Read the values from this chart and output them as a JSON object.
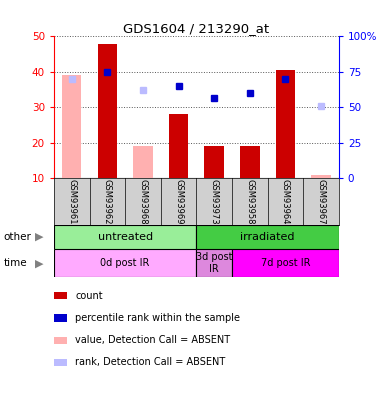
{
  "title": "GDS1604 / 213290_at",
  "samples": [
    "GSM93961",
    "GSM93962",
    "GSM93968",
    "GSM93969",
    "GSM93973",
    "GSM93958",
    "GSM93964",
    "GSM93967"
  ],
  "count_values": [
    null,
    48,
    null,
    28,
    19,
    19,
    40.5,
    null
  ],
  "count_absent": [
    39,
    null,
    19,
    null,
    null,
    null,
    null,
    11
  ],
  "rank_values": [
    null,
    40,
    null,
    36,
    32.5,
    34,
    38,
    null
  ],
  "rank_absent": [
    38,
    null,
    35,
    null,
    null,
    null,
    null,
    30.5
  ],
  "ylim_left": [
    10,
    50
  ],
  "ylim_right": [
    0,
    100
  ],
  "yticks_left": [
    10,
    20,
    30,
    40,
    50
  ],
  "yticks_right": [
    0,
    25,
    50,
    75,
    100
  ],
  "yticklabels_right": [
    "0",
    "25",
    "50",
    "75",
    "100%"
  ],
  "bar_color": "#cc0000",
  "bar_absent_color": "#ffb0b0",
  "rank_color": "#0000cc",
  "rank_absent_color": "#bbbbff",
  "group_other": [
    {
      "label": "untreated",
      "start": 0,
      "end": 4,
      "color": "#99ee99"
    },
    {
      "label": "irradiated",
      "start": 4,
      "end": 8,
      "color": "#44cc44"
    }
  ],
  "group_time": [
    {
      "label": "0d post IR",
      "start": 0,
      "end": 4,
      "color": "#ffaaff"
    },
    {
      "label": "3d post\nIR",
      "start": 4,
      "end": 5,
      "color": "#dd88dd"
    },
    {
      "label": "7d post IR",
      "start": 5,
      "end": 8,
      "color": "#ff00ff"
    }
  ],
  "legend_items": [
    {
      "label": "count",
      "color": "#cc0000"
    },
    {
      "label": "percentile rank within the sample",
      "color": "#0000cc"
    },
    {
      "label": "value, Detection Call = ABSENT",
      "color": "#ffb0b0"
    },
    {
      "label": "rank, Detection Call = ABSENT",
      "color": "#bbbbff"
    }
  ],
  "bg_color": "#d0d0d0",
  "grid_color": "#555555"
}
